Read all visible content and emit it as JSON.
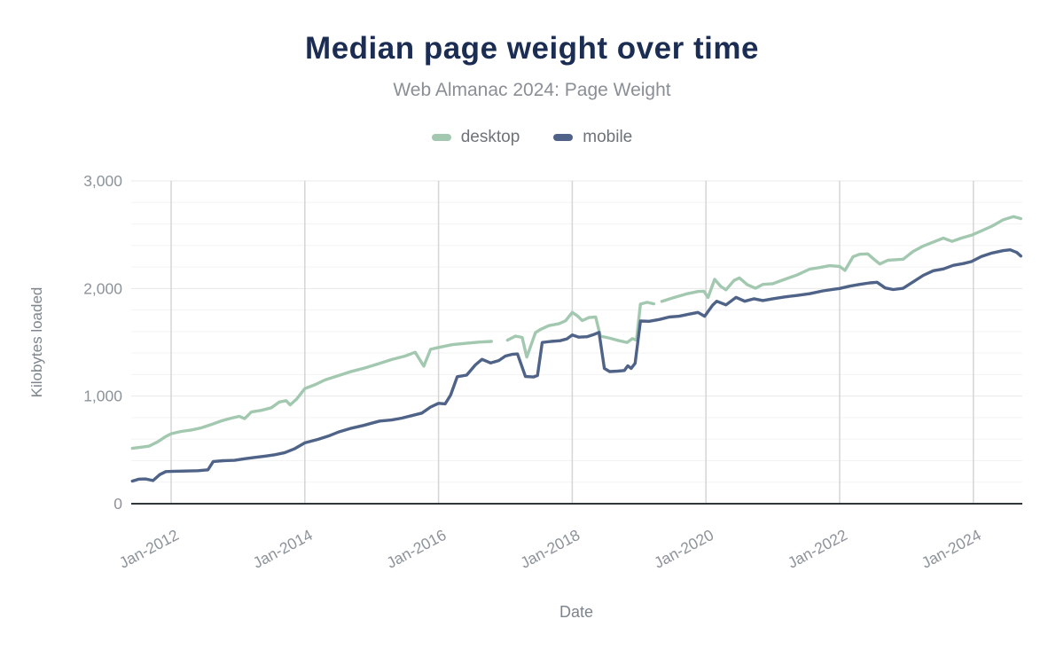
{
  "chart_data": {
    "type": "line",
    "title": "Median page weight over time",
    "subtitle": "Web Almanac 2024: Page Weight",
    "xlabel": "Date",
    "ylabel": "Kilobytes loaded",
    "ylim": [
      0,
      3000
    ],
    "xlim": [
      2011.4,
      2024.75
    ],
    "y_major_ticks": [
      {
        "label": "0",
        "value": 0
      },
      {
        "label": "1,000",
        "value": 1000
      },
      {
        "label": "2,000",
        "value": 2000
      },
      {
        "label": "3,000",
        "value": 3000
      }
    ],
    "y_minor_step": 200,
    "x_ticks": [
      {
        "label": "Jan-2012",
        "year": 2012
      },
      {
        "label": "Jan-2014",
        "year": 2014
      },
      {
        "label": "Jan-2016",
        "year": 2016
      },
      {
        "label": "Jan-2018",
        "year": 2018
      },
      {
        "label": "Jan-2020",
        "year": 2020
      },
      {
        "label": "Jan-2022",
        "year": 2022
      },
      {
        "label": "Jan-2024",
        "year": 2024
      }
    ],
    "grid": {
      "vertical": true,
      "horizontal_minor": true,
      "legend_position": "top"
    },
    "colors": {
      "title": "#1b2d52",
      "subtitle": "#8a8f96",
      "legend_label": "#6e737a",
      "tick_label": "#8d939a",
      "axis_title": "#7d848c",
      "axis_line": "#30353b",
      "grid_vertical": "#d5d5d5",
      "grid_major": "#e8e8e8",
      "grid_minor": "#f3f3f3",
      "background": "#ffffff"
    },
    "units": "KB",
    "series": [
      {
        "name": "desktop",
        "color": "#a2c8b0",
        "points": [
          [
            2011.42,
            515
          ],
          [
            2011.55,
            525
          ],
          [
            2011.67,
            535
          ],
          [
            2011.8,
            575
          ],
          [
            2011.92,
            625
          ],
          [
            2012.0,
            650
          ],
          [
            2012.15,
            672
          ],
          [
            2012.3,
            685
          ],
          [
            2012.45,
            705
          ],
          [
            2012.6,
            735
          ],
          [
            2012.75,
            770
          ],
          [
            2012.9,
            795
          ],
          [
            2013.02,
            812
          ],
          [
            2013.1,
            790
          ],
          [
            2013.2,
            852
          ],
          [
            2013.35,
            868
          ],
          [
            2013.5,
            892
          ],
          [
            2013.62,
            945
          ],
          [
            2013.72,
            958
          ],
          [
            2013.78,
            918
          ],
          [
            2013.88,
            975
          ],
          [
            2014.0,
            1070
          ],
          [
            2014.15,
            1105
          ],
          [
            2014.3,
            1150
          ],
          [
            2014.5,
            1190
          ],
          [
            2014.7,
            1230
          ],
          [
            2014.9,
            1262
          ],
          [
            2015.1,
            1300
          ],
          [
            2015.3,
            1340
          ],
          [
            2015.5,
            1372
          ],
          [
            2015.65,
            1408
          ],
          [
            2015.78,
            1278
          ],
          [
            2015.88,
            1435
          ],
          [
            2016.0,
            1452
          ],
          [
            2016.2,
            1478
          ],
          [
            2016.4,
            1490
          ],
          [
            2016.6,
            1502
          ],
          [
            2016.79,
            1508
          ],
          [
            2016.9,
            null
          ],
          [
            2017.03,
            1520
          ],
          [
            2017.15,
            1558
          ],
          [
            2017.25,
            1545
          ],
          [
            2017.32,
            1362
          ],
          [
            2017.45,
            1590
          ],
          [
            2017.52,
            1618
          ],
          [
            2017.65,
            1655
          ],
          [
            2017.8,
            1672
          ],
          [
            2017.9,
            1700
          ],
          [
            2018.0,
            1778
          ],
          [
            2018.08,
            1745
          ],
          [
            2018.15,
            1702
          ],
          [
            2018.25,
            1730
          ],
          [
            2018.35,
            1735
          ],
          [
            2018.42,
            1558
          ],
          [
            2018.55,
            1540
          ],
          [
            2018.7,
            1515
          ],
          [
            2018.82,
            1498
          ],
          [
            2018.9,
            1535
          ],
          [
            2018.96,
            1520
          ],
          [
            2019.02,
            1855
          ],
          [
            2019.12,
            1872
          ],
          [
            2019.22,
            1858
          ],
          [
            2019.28,
            null
          ],
          [
            2019.34,
            1880
          ],
          [
            2019.5,
            1912
          ],
          [
            2019.7,
            1948
          ],
          [
            2019.88,
            1972
          ],
          [
            2019.97,
            1975
          ],
          [
            2020.03,
            1916
          ],
          [
            2020.13,
            2085
          ],
          [
            2020.22,
            2020
          ],
          [
            2020.3,
            1988
          ],
          [
            2020.42,
            2075
          ],
          [
            2020.5,
            2098
          ],
          [
            2020.62,
            2035
          ],
          [
            2020.74,
            2002
          ],
          [
            2020.85,
            2038
          ],
          [
            2021.0,
            2045
          ],
          [
            2021.2,
            2090
          ],
          [
            2021.36,
            2125
          ],
          [
            2021.55,
            2180
          ],
          [
            2021.7,
            2195
          ],
          [
            2021.85,
            2212
          ],
          [
            2022.0,
            2205
          ],
          [
            2022.08,
            2168
          ],
          [
            2022.2,
            2295
          ],
          [
            2022.3,
            2318
          ],
          [
            2022.42,
            2322
          ],
          [
            2022.52,
            2268
          ],
          [
            2022.6,
            2228
          ],
          [
            2022.72,
            2262
          ],
          [
            2022.85,
            2268
          ],
          [
            2022.95,
            2272
          ],
          [
            2023.1,
            2345
          ],
          [
            2023.25,
            2395
          ],
          [
            2023.4,
            2432
          ],
          [
            2023.55,
            2468
          ],
          [
            2023.68,
            2438
          ],
          [
            2023.82,
            2468
          ],
          [
            2023.97,
            2495
          ],
          [
            2024.1,
            2530
          ],
          [
            2024.28,
            2580
          ],
          [
            2024.45,
            2640
          ],
          [
            2024.6,
            2668
          ],
          [
            2024.71,
            2650
          ]
        ]
      },
      {
        "name": "mobile",
        "color": "#4e6387",
        "points": [
          [
            2011.42,
            210
          ],
          [
            2011.52,
            228
          ],
          [
            2011.62,
            230
          ],
          [
            2011.73,
            215
          ],
          [
            2011.83,
            270
          ],
          [
            2011.92,
            298
          ],
          [
            2012.0,
            300
          ],
          [
            2012.2,
            303
          ],
          [
            2012.4,
            307
          ],
          [
            2012.55,
            315
          ],
          [
            2012.63,
            392
          ],
          [
            2012.78,
            400
          ],
          [
            2012.95,
            403
          ],
          [
            2013.1,
            418
          ],
          [
            2013.25,
            430
          ],
          [
            2013.4,
            442
          ],
          [
            2013.55,
            455
          ],
          [
            2013.7,
            475
          ],
          [
            2013.85,
            512
          ],
          [
            2014.0,
            565
          ],
          [
            2014.2,
            598
          ],
          [
            2014.35,
            628
          ],
          [
            2014.5,
            665
          ],
          [
            2014.7,
            702
          ],
          [
            2014.88,
            728
          ],
          [
            2015.0,
            748
          ],
          [
            2015.12,
            768
          ],
          [
            2015.3,
            778
          ],
          [
            2015.45,
            795
          ],
          [
            2015.6,
            818
          ],
          [
            2015.75,
            842
          ],
          [
            2015.88,
            898
          ],
          [
            2016.0,
            933
          ],
          [
            2016.1,
            928
          ],
          [
            2016.18,
            1010
          ],
          [
            2016.28,
            1180
          ],
          [
            2016.42,
            1195
          ],
          [
            2016.55,
            1290
          ],
          [
            2016.65,
            1342
          ],
          [
            2016.78,
            1308
          ],
          [
            2016.9,
            1330
          ],
          [
            2017.0,
            1372
          ],
          [
            2017.1,
            1388
          ],
          [
            2017.18,
            1392
          ],
          [
            2017.3,
            1182
          ],
          [
            2017.42,
            1178
          ],
          [
            2017.48,
            1192
          ],
          [
            2017.55,
            1498
          ],
          [
            2017.68,
            1508
          ],
          [
            2017.82,
            1515
          ],
          [
            2017.92,
            1532
          ],
          [
            2018.0,
            1568
          ],
          [
            2018.1,
            1548
          ],
          [
            2018.22,
            1552
          ],
          [
            2018.32,
            1572
          ],
          [
            2018.4,
            1592
          ],
          [
            2018.48,
            1258
          ],
          [
            2018.56,
            1228
          ],
          [
            2018.68,
            1232
          ],
          [
            2018.78,
            1238
          ],
          [
            2018.83,
            1282
          ],
          [
            2018.88,
            1258
          ],
          [
            2018.94,
            1305
          ],
          [
            2019.02,
            1698
          ],
          [
            2019.15,
            1695
          ],
          [
            2019.3,
            1712
          ],
          [
            2019.45,
            1735
          ],
          [
            2019.6,
            1742
          ],
          [
            2019.75,
            1762
          ],
          [
            2019.88,
            1778
          ],
          [
            2019.98,
            1742
          ],
          [
            2020.1,
            1845
          ],
          [
            2020.16,
            1882
          ],
          [
            2020.3,
            1848
          ],
          [
            2020.45,
            1918
          ],
          [
            2020.58,
            1882
          ],
          [
            2020.72,
            1905
          ],
          [
            2020.85,
            1888
          ],
          [
            2021.0,
            1905
          ],
          [
            2021.18,
            1922
          ],
          [
            2021.36,
            1935
          ],
          [
            2021.55,
            1952
          ],
          [
            2021.75,
            1978
          ],
          [
            2021.9,
            1992
          ],
          [
            2022.0,
            2000
          ],
          [
            2022.15,
            2022
          ],
          [
            2022.3,
            2038
          ],
          [
            2022.45,
            2052
          ],
          [
            2022.56,
            2058
          ],
          [
            2022.68,
            2005
          ],
          [
            2022.8,
            1990
          ],
          [
            2022.95,
            2002
          ],
          [
            2023.1,
            2062
          ],
          [
            2023.25,
            2122
          ],
          [
            2023.4,
            2165
          ],
          [
            2023.55,
            2182
          ],
          [
            2023.7,
            2215
          ],
          [
            2023.85,
            2232
          ],
          [
            2023.97,
            2250
          ],
          [
            2024.12,
            2298
          ],
          [
            2024.28,
            2330
          ],
          [
            2024.45,
            2352
          ],
          [
            2024.55,
            2360
          ],
          [
            2024.65,
            2335
          ],
          [
            2024.71,
            2302
          ]
        ]
      }
    ]
  }
}
